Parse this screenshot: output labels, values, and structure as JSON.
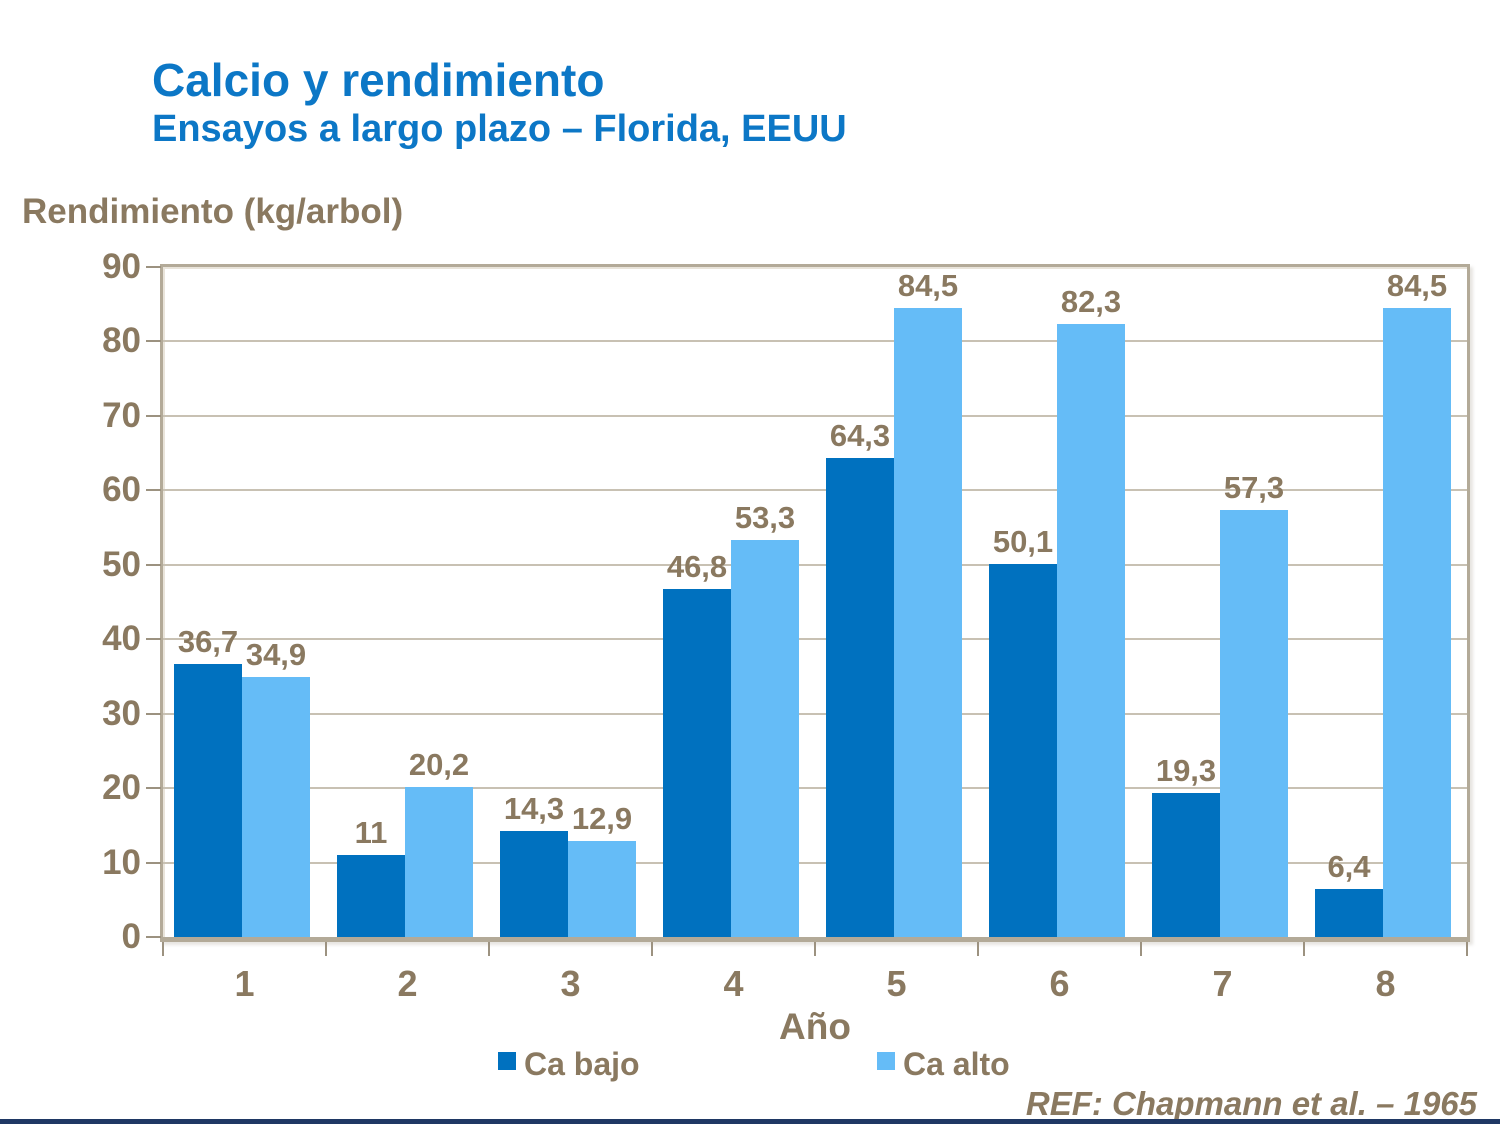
{
  "slide": {
    "title": "Calcio y rendimiento",
    "subtitle": "Ensayos a largo plazo – Florida, EEUU",
    "ref": "REF: Chapmann et al. – 1965"
  },
  "chart_data": {
    "type": "bar",
    "title": "Calcio y rendimiento",
    "subtitle": "Ensayos a largo plazo – Florida, EEUU",
    "ylabel": "Rendimiento (kg/arbol)",
    "xlabel": "Año",
    "categories": [
      "1",
      "2",
      "3",
      "4",
      "5",
      "6",
      "7",
      "8"
    ],
    "series": [
      {
        "name": "Ca bajo",
        "color": "#0071bf",
        "values": [
          36.7,
          11,
          14.3,
          46.8,
          64.3,
          50.1,
          19.3,
          6.4
        ],
        "labels": [
          "36,7",
          "11",
          "14,3",
          "46,8",
          "64,3",
          "50,1",
          "19,3",
          "6,4"
        ]
      },
      {
        "name": "Ca alto",
        "color": "#65bcf7",
        "values": [
          34.9,
          20.2,
          12.9,
          53.3,
          84.5,
          82.3,
          57.3,
          84.5
        ],
        "labels": [
          "34,9",
          "20,2",
          "12,9",
          "53,3",
          "84,5",
          "82,3",
          "57,3",
          "84,5"
        ]
      }
    ],
    "y_axis": {
      "min": 0,
      "max": 90,
      "step": 10,
      "ticks": [
        "0",
        "10",
        "20",
        "30",
        "40",
        "50",
        "60",
        "70",
        "80",
        "90"
      ]
    },
    "ylim": [
      0,
      90
    ],
    "grid": true,
    "legend_position": "bottom",
    "decimal_separator": ","
  },
  "colors": {
    "title_blue": "#0c77c6",
    "text_brown": "#8a7960",
    "gridline": "#c8c1b3",
    "tick": "#9c9280",
    "plot_border": "#b3aa98",
    "bar_dark": "#0071bf",
    "bar_light": "#65bcf7",
    "bottom_bar_navy": "#1f3864"
  }
}
